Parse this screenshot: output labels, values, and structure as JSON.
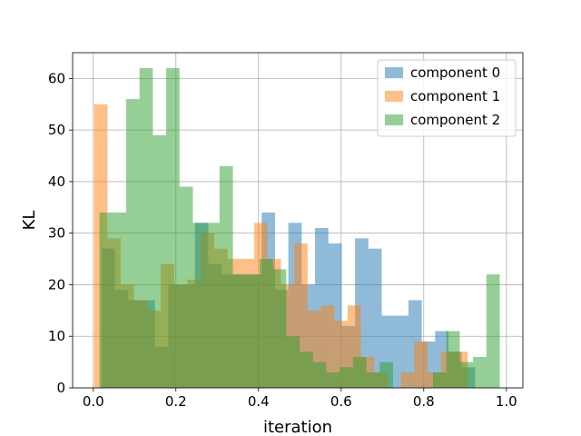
{
  "chart_data": {
    "type": "bar",
    "subtype": "overlapping-histogram",
    "xlabel": "iteration",
    "ylabel": "KL",
    "xlim": [
      -0.05,
      1.04
    ],
    "ylim": [
      0,
      65
    ],
    "x_ticks": [
      "0.0",
      "0.2",
      "0.4",
      "0.6",
      "0.8",
      "1.0"
    ],
    "x_tick_values": [
      0.0,
      0.2,
      0.4,
      0.6,
      0.8,
      1.0
    ],
    "y_ticks": [
      "0",
      "10",
      "20",
      "30",
      "40",
      "50",
      "60"
    ],
    "y_tick_values": [
      0,
      10,
      20,
      30,
      40,
      50,
      60
    ],
    "grid": true,
    "legend_position": "top-right",
    "bar_alpha": 0.5,
    "series": [
      {
        "name": "component 0",
        "color": "#1f77b4",
        "bin_start": 0.02,
        "bin_width": 0.0323,
        "values": [
          27,
          19,
          17,
          17,
          8,
          20,
          20,
          32,
          24,
          22,
          22,
          22,
          34,
          19,
          32,
          20,
          31,
          28,
          12,
          29,
          27,
          14,
          14,
          17,
          9,
          11,
          7,
          4,
          0,
          0
        ]
      },
      {
        "name": "component 1",
        "color": "#ff7f0e",
        "bin_start": 0.002,
        "bin_width": 0.0323,
        "values": [
          55,
          29,
          20,
          17,
          15,
          24,
          20,
          21,
          30,
          27,
          25,
          25,
          32,
          25,
          20,
          28,
          15,
          16,
          13,
          16,
          6,
          3,
          0,
          3,
          9,
          3,
          7,
          7,
          0,
          0
        ]
      },
      {
        "name": "component 2",
        "color": "#2ca02c",
        "bin_start": 0.015,
        "bin_width": 0.0323,
        "values": [
          34,
          34,
          56,
          62,
          49,
          62,
          39,
          32,
          32,
          43,
          22,
          22,
          25,
          23,
          10,
          7,
          5,
          3,
          4,
          6,
          3,
          5,
          0,
          0,
          0,
          3,
          11,
          5,
          6,
          22
        ]
      }
    ]
  }
}
